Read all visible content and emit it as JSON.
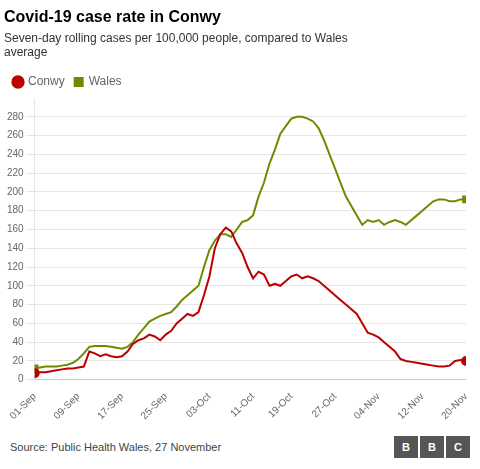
{
  "chart_data": {
    "type": "line",
    "title": "Covid-19 case rate in Conwy",
    "subtitle": "Seven-day rolling cases per 100,000 people, compared to Wales\naverage",
    "source": "Source: Public Health Wales, 27 November",
    "logo": "BBC",
    "categories": [
      "01-Sep",
      null,
      null,
      null,
      null,
      null,
      null,
      null,
      "09-Sep",
      null,
      null,
      null,
      null,
      null,
      null,
      null,
      "17-Sep",
      null,
      null,
      null,
      null,
      null,
      null,
      null,
      "25-Sep",
      null,
      null,
      null,
      null,
      null,
      null,
      null,
      "03-Oct",
      null,
      null,
      null,
      null,
      null,
      null,
      null,
      "11-Oct",
      null,
      null,
      null,
      null,
      null,
      null,
      "19-Oct",
      null,
      null,
      null,
      null,
      null,
      null,
      null,
      "27-Oct",
      null,
      null,
      null,
      null,
      null,
      null,
      null,
      "04-Nov",
      null,
      null,
      null,
      null,
      null,
      null,
      null,
      "12-Nov",
      null,
      null,
      null,
      null,
      null,
      null,
      null,
      "20-Nov"
    ],
    "series": [
      {
        "name": "Conwy",
        "color": "#bb0000",
        "marker": "circle",
        "values": [
          7,
          8,
          8,
          9,
          10,
          11,
          12,
          12,
          13,
          14,
          30,
          28,
          25,
          27,
          25,
          24,
          25,
          30,
          38,
          42,
          44,
          48,
          46,
          42,
          48,
          52,
          60,
          65,
          70,
          68,
          72,
          90,
          110,
          140,
          155,
          162,
          158,
          145,
          135,
          120,
          108,
          115,
          112,
          100,
          102,
          100,
          105,
          110,
          112,
          108,
          110,
          108,
          105,
          100,
          95,
          90,
          85,
          80,
          75,
          70,
          60,
          50,
          48,
          45,
          40,
          35,
          30,
          22,
          20,
          19,
          18,
          17,
          16,
          15,
          14,
          14,
          15,
          20,
          21,
          20
        ]
      },
      {
        "name": "Wales",
        "color": "#6b8c00",
        "marker": "square",
        "values": [
          12,
          13,
          14,
          14,
          14,
          15,
          16,
          18,
          22,
          28,
          35,
          36,
          36,
          36,
          35,
          34,
          33,
          35,
          40,
          48,
          55,
          62,
          65,
          68,
          70,
          72,
          78,
          85,
          90,
          95,
          100,
          120,
          138,
          148,
          155,
          155,
          152,
          160,
          168,
          170,
          175,
          195,
          210,
          230,
          245,
          262,
          270,
          278,
          280,
          280,
          278,
          275,
          268,
          255,
          240,
          225,
          210,
          195,
          185,
          175,
          165,
          170,
          168,
          170,
          165,
          168,
          170,
          168,
          165,
          170,
          175,
          180,
          185,
          190,
          192,
          192,
          190,
          190,
          192,
          192
        ]
      }
    ],
    "ylim": [
      0,
      300
    ],
    "yticks": [
      0,
      20,
      40,
      60,
      80,
      100,
      120,
      140,
      160,
      180,
      200,
      220,
      240,
      260,
      280
    ],
    "grid": true,
    "legend": "top-left"
  }
}
